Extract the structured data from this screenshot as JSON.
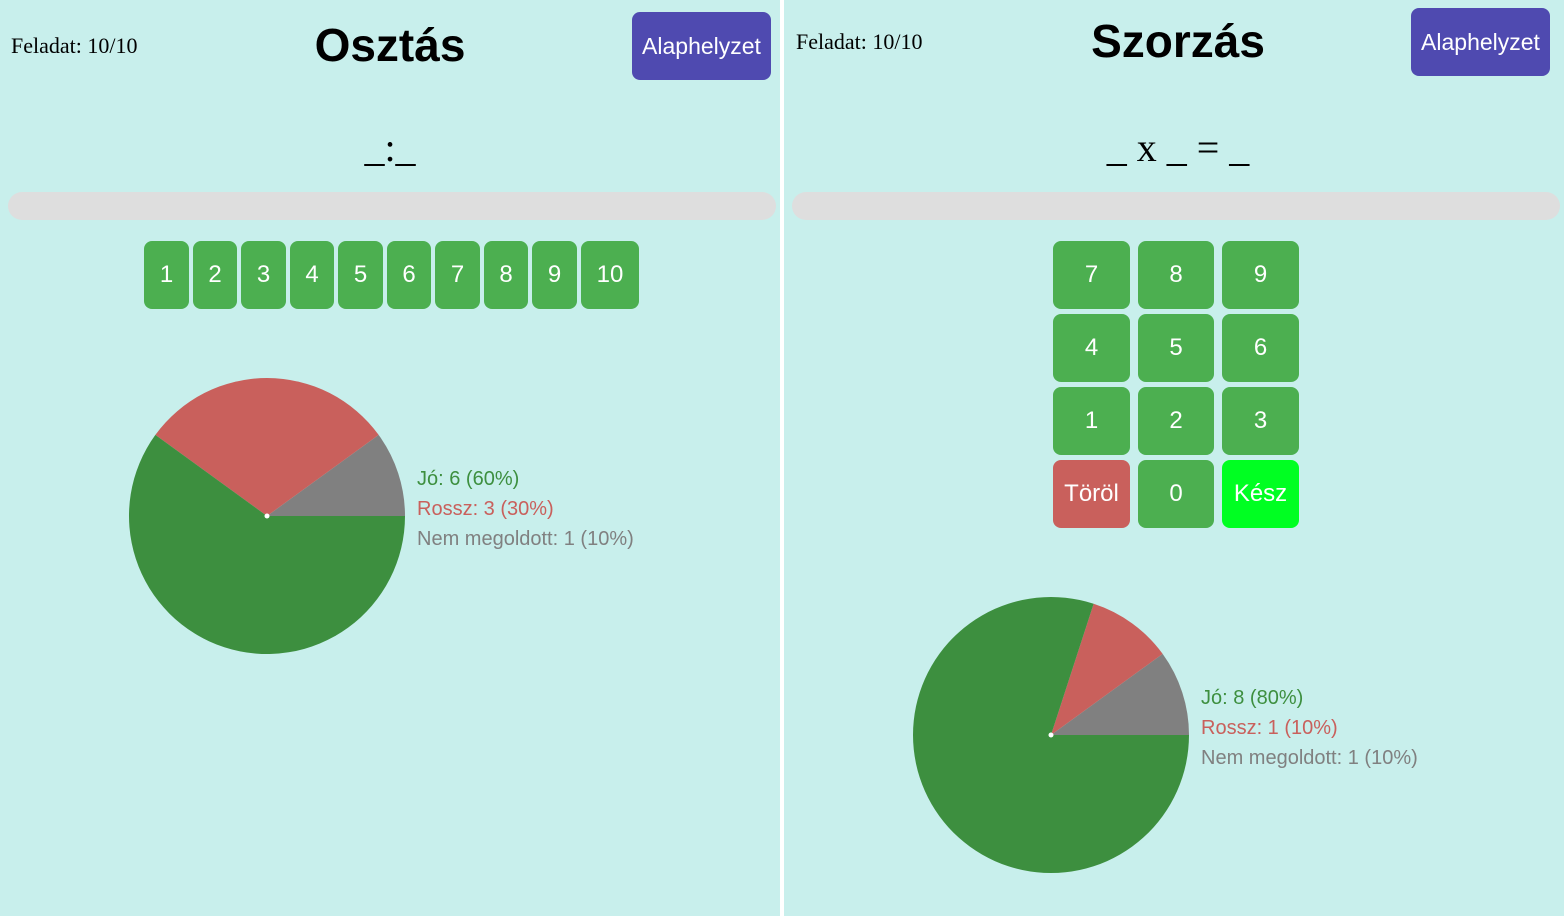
{
  "left_panel": {
    "task_counter": "Feladat: 10/10",
    "title": "Osztás",
    "reset_label": "Alaphelyzet",
    "equation": "_:_",
    "answer_buttons": [
      "1",
      "2",
      "3",
      "4",
      "5",
      "6",
      "7",
      "8",
      "9",
      "10"
    ],
    "legend": {
      "good": "Jó: 6 (60%)",
      "bad": "Rossz: 3 (30%)",
      "unsolved": "Nem megoldott: 1 (10%)"
    }
  },
  "right_panel": {
    "task_counter": "Feladat: 10/10",
    "title": "Szorzás",
    "reset_label": "Alaphelyzet",
    "equation": "_ x _ = _",
    "keypad": [
      [
        "7",
        "8",
        "9"
      ],
      [
        "4",
        "5",
        "6"
      ],
      [
        "1",
        "2",
        "3"
      ],
      [
        "Töröl",
        "0",
        "Kész"
      ]
    ],
    "legend": {
      "good": "Jó: 8 (80%)",
      "bad": "Rossz: 1 (10%)",
      "unsolved": "Nem megoldott: 1 (10%)"
    }
  },
  "colors": {
    "background": "#c8efec",
    "good": "#3d8f3f",
    "bad": "#c9605c",
    "unsolved": "#808080",
    "key": "#4caf50",
    "done_key": "#00ff22",
    "reset": "#4f4ab0"
  },
  "chart_data": [
    {
      "type": "pie",
      "categories": [
        "Jó",
        "Rossz",
        "Nem megoldott"
      ],
      "values": [
        6,
        3,
        1
      ]
    },
    {
      "type": "pie",
      "categories": [
        "Jó",
        "Rossz",
        "Nem megoldott"
      ],
      "values": [
        8,
        1,
        1
      ]
    }
  ]
}
